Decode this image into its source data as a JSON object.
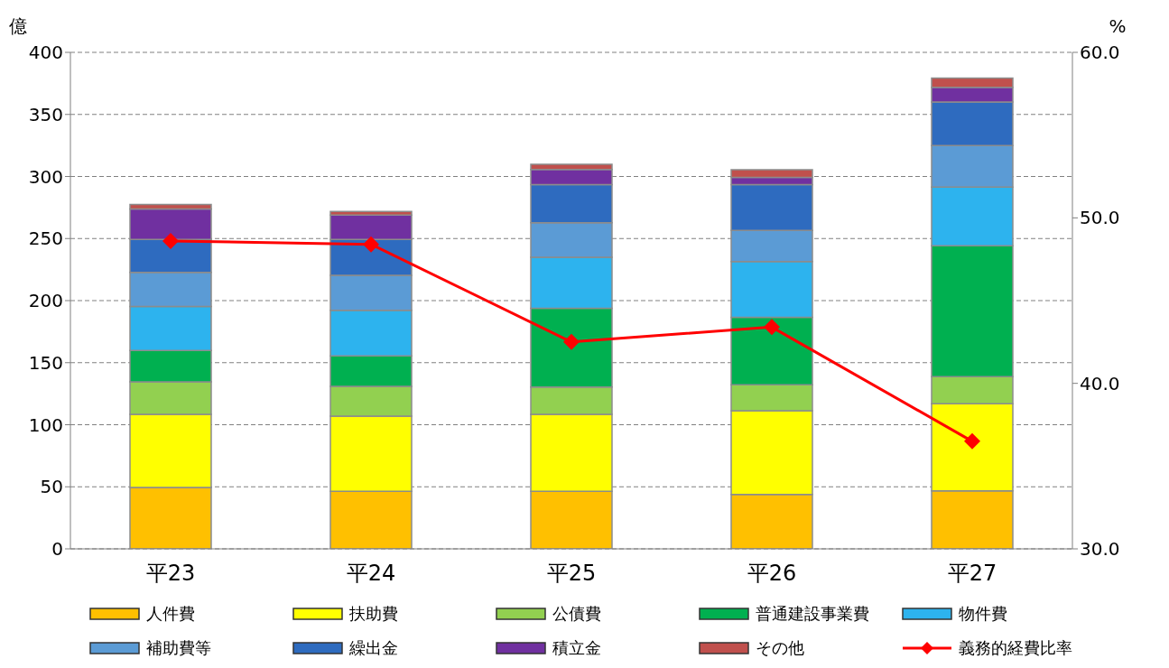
{
  "chart_data": {
    "type": "bar",
    "stacked": true,
    "ylabel": "億",
    "y2label": "%",
    "categories": [
      "平23",
      "平24",
      "平25",
      "平26",
      "平27"
    ],
    "series": [
      {
        "name": "人件費",
        "color": "#ffc000",
        "values": [
          49.5,
          46.3,
          46.3,
          43.9,
          46.8
        ]
      },
      {
        "name": "扶助費",
        "color": "#ffff00",
        "values": [
          58.8,
          60.6,
          62,
          67.4,
          70.1
        ]
      },
      {
        "name": "公債費",
        "color": "#92d050",
        "values": [
          26.3,
          24,
          22.1,
          20.8,
          21.8
        ]
      },
      {
        "name": "普通建設事業費",
        "color": "#00b050",
        "values": [
          25.2,
          24.5,
          63.4,
          54.4,
          105.4
        ]
      },
      {
        "name": "物件費",
        "color": "#2db3ee",
        "values": [
          35.5,
          36.8,
          41.2,
          44.9,
          47.3
        ]
      },
      {
        "name": "補助費等",
        "color": "#5b9bd5",
        "values": [
          27.5,
          28.1,
          27.8,
          25.2,
          33.6
        ]
      },
      {
        "name": "繰出金",
        "color": "#2e6bbf",
        "values": [
          26.5,
          29,
          30.6,
          36.8,
          35
        ]
      },
      {
        "name": "積立金",
        "color": "#7030a0",
        "values": [
          24.5,
          19.6,
          12.2,
          5.9,
          11.8
        ]
      },
      {
        "name": "その他",
        "color": "#c0504d",
        "values": [
          3.6,
          2.9,
          4.2,
          6.1,
          7.4
        ]
      },
      {
        "name": "義務的経費比率",
        "type": "line",
        "axis": "y2",
        "color": "#ff0000",
        "marker": "diamond",
        "values": [
          48.6,
          48.4,
          42.5,
          43.4,
          36.5
        ]
      }
    ],
    "ylim": [
      0,
      400
    ],
    "yticks": [
      0,
      50,
      100,
      150,
      200,
      250,
      300,
      350,
      400
    ],
    "y2lim": [
      30,
      60
    ],
    "y2ticks": [
      {
        "value": 30,
        "label": "30.0"
      },
      {
        "value": 40,
        "label": "40.0"
      },
      {
        "value": 50,
        "label": "50.0"
      },
      {
        "value": 60,
        "label": "60.0"
      }
    ],
    "grid": "y",
    "legend": "bottom"
  }
}
